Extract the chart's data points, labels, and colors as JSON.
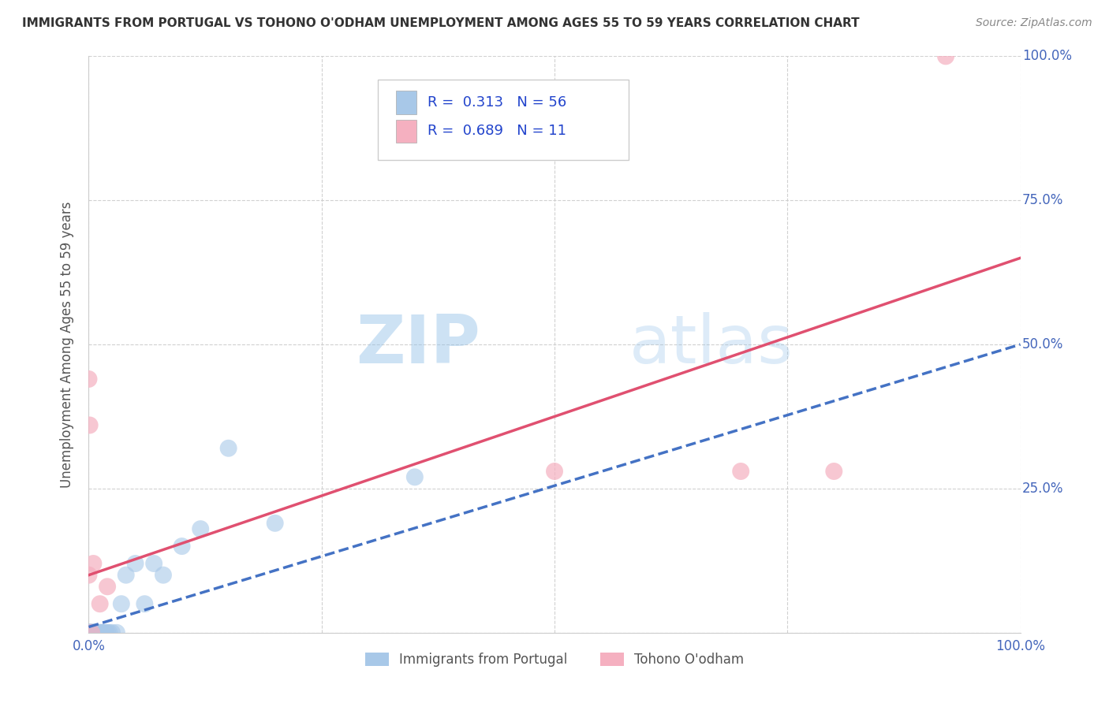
{
  "title": "IMMIGRANTS FROM PORTUGAL VS TOHONO O'ODHAM UNEMPLOYMENT AMONG AGES 55 TO 59 YEARS CORRELATION CHART",
  "source": "Source: ZipAtlas.com",
  "ylabel": "Unemployment Among Ages 55 to 59 years",
  "xlim": [
    0,
    1.0
  ],
  "ylim": [
    0,
    1.0
  ],
  "xticks": [
    0.0,
    0.25,
    0.5,
    0.75,
    1.0
  ],
  "xticklabels": [
    "0.0%",
    "",
    "",
    "",
    "100.0%"
  ],
  "yticks": [
    0.0,
    0.25,
    0.5,
    0.75,
    1.0
  ],
  "yticklabels_right": [
    "",
    "25.0%",
    "50.0%",
    "75.0%",
    "100.0%"
  ],
  "R_blue": 0.313,
  "N_blue": 56,
  "R_pink": 0.689,
  "N_pink": 11,
  "blue_color": "#a8c8e8",
  "pink_color": "#f5b0c0",
  "blue_line_color": "#4472c4",
  "pink_line_color": "#e05070",
  "watermark_zip": "ZIP",
  "watermark_atlas": "atlas",
  "legend_label_blue": "Immigrants from Portugal",
  "legend_label_pink": "Tohono O'odham",
  "blue_scatter_x": [
    0.0,
    0.0,
    0.0,
    0.0,
    0.001,
    0.001,
    0.001,
    0.001,
    0.001,
    0.002,
    0.002,
    0.002,
    0.002,
    0.003,
    0.003,
    0.003,
    0.003,
    0.004,
    0.004,
    0.004,
    0.005,
    0.005,
    0.005,
    0.005,
    0.006,
    0.006,
    0.007,
    0.007,
    0.008,
    0.008,
    0.009,
    0.009,
    0.01,
    0.01,
    0.011,
    0.012,
    0.013,
    0.014,
    0.015,
    0.016,
    0.018,
    0.02,
    0.022,
    0.025,
    0.03,
    0.035,
    0.04,
    0.05,
    0.06,
    0.07,
    0.08,
    0.1,
    0.12,
    0.15,
    0.2,
    0.35
  ],
  "blue_scatter_y": [
    0.0,
    0.0,
    0.0,
    0.0,
    0.0,
    0.0,
    0.0,
    0.0,
    0.0,
    0.0,
    0.0,
    0.0,
    0.0,
    0.0,
    0.0,
    0.0,
    0.0,
    0.0,
    0.0,
    0.0,
    0.0,
    0.0,
    0.0,
    0.0,
    0.0,
    0.0,
    0.0,
    0.0,
    0.0,
    0.0,
    0.0,
    0.0,
    0.0,
    0.0,
    0.0,
    0.0,
    0.0,
    0.0,
    0.0,
    0.0,
    0.0,
    0.0,
    0.0,
    0.0,
    0.0,
    0.05,
    0.1,
    0.12,
    0.05,
    0.12,
    0.1,
    0.15,
    0.18,
    0.32,
    0.19,
    0.27
  ],
  "pink_scatter_x": [
    0.0,
    0.0,
    0.001,
    0.003,
    0.005,
    0.012,
    0.02,
    0.5,
    0.7,
    0.8,
    0.92
  ],
  "pink_scatter_y": [
    0.44,
    0.1,
    0.36,
    0.0,
    0.12,
    0.05,
    0.08,
    0.28,
    0.28,
    0.28,
    1.0
  ],
  "blue_line_x0": 0.0,
  "blue_line_x1": 1.0,
  "blue_line_y0": 0.01,
  "blue_line_y1": 0.5,
  "pink_line_x0": 0.0,
  "pink_line_x1": 1.0,
  "pink_line_y0": 0.1,
  "pink_line_y1": 0.65
}
